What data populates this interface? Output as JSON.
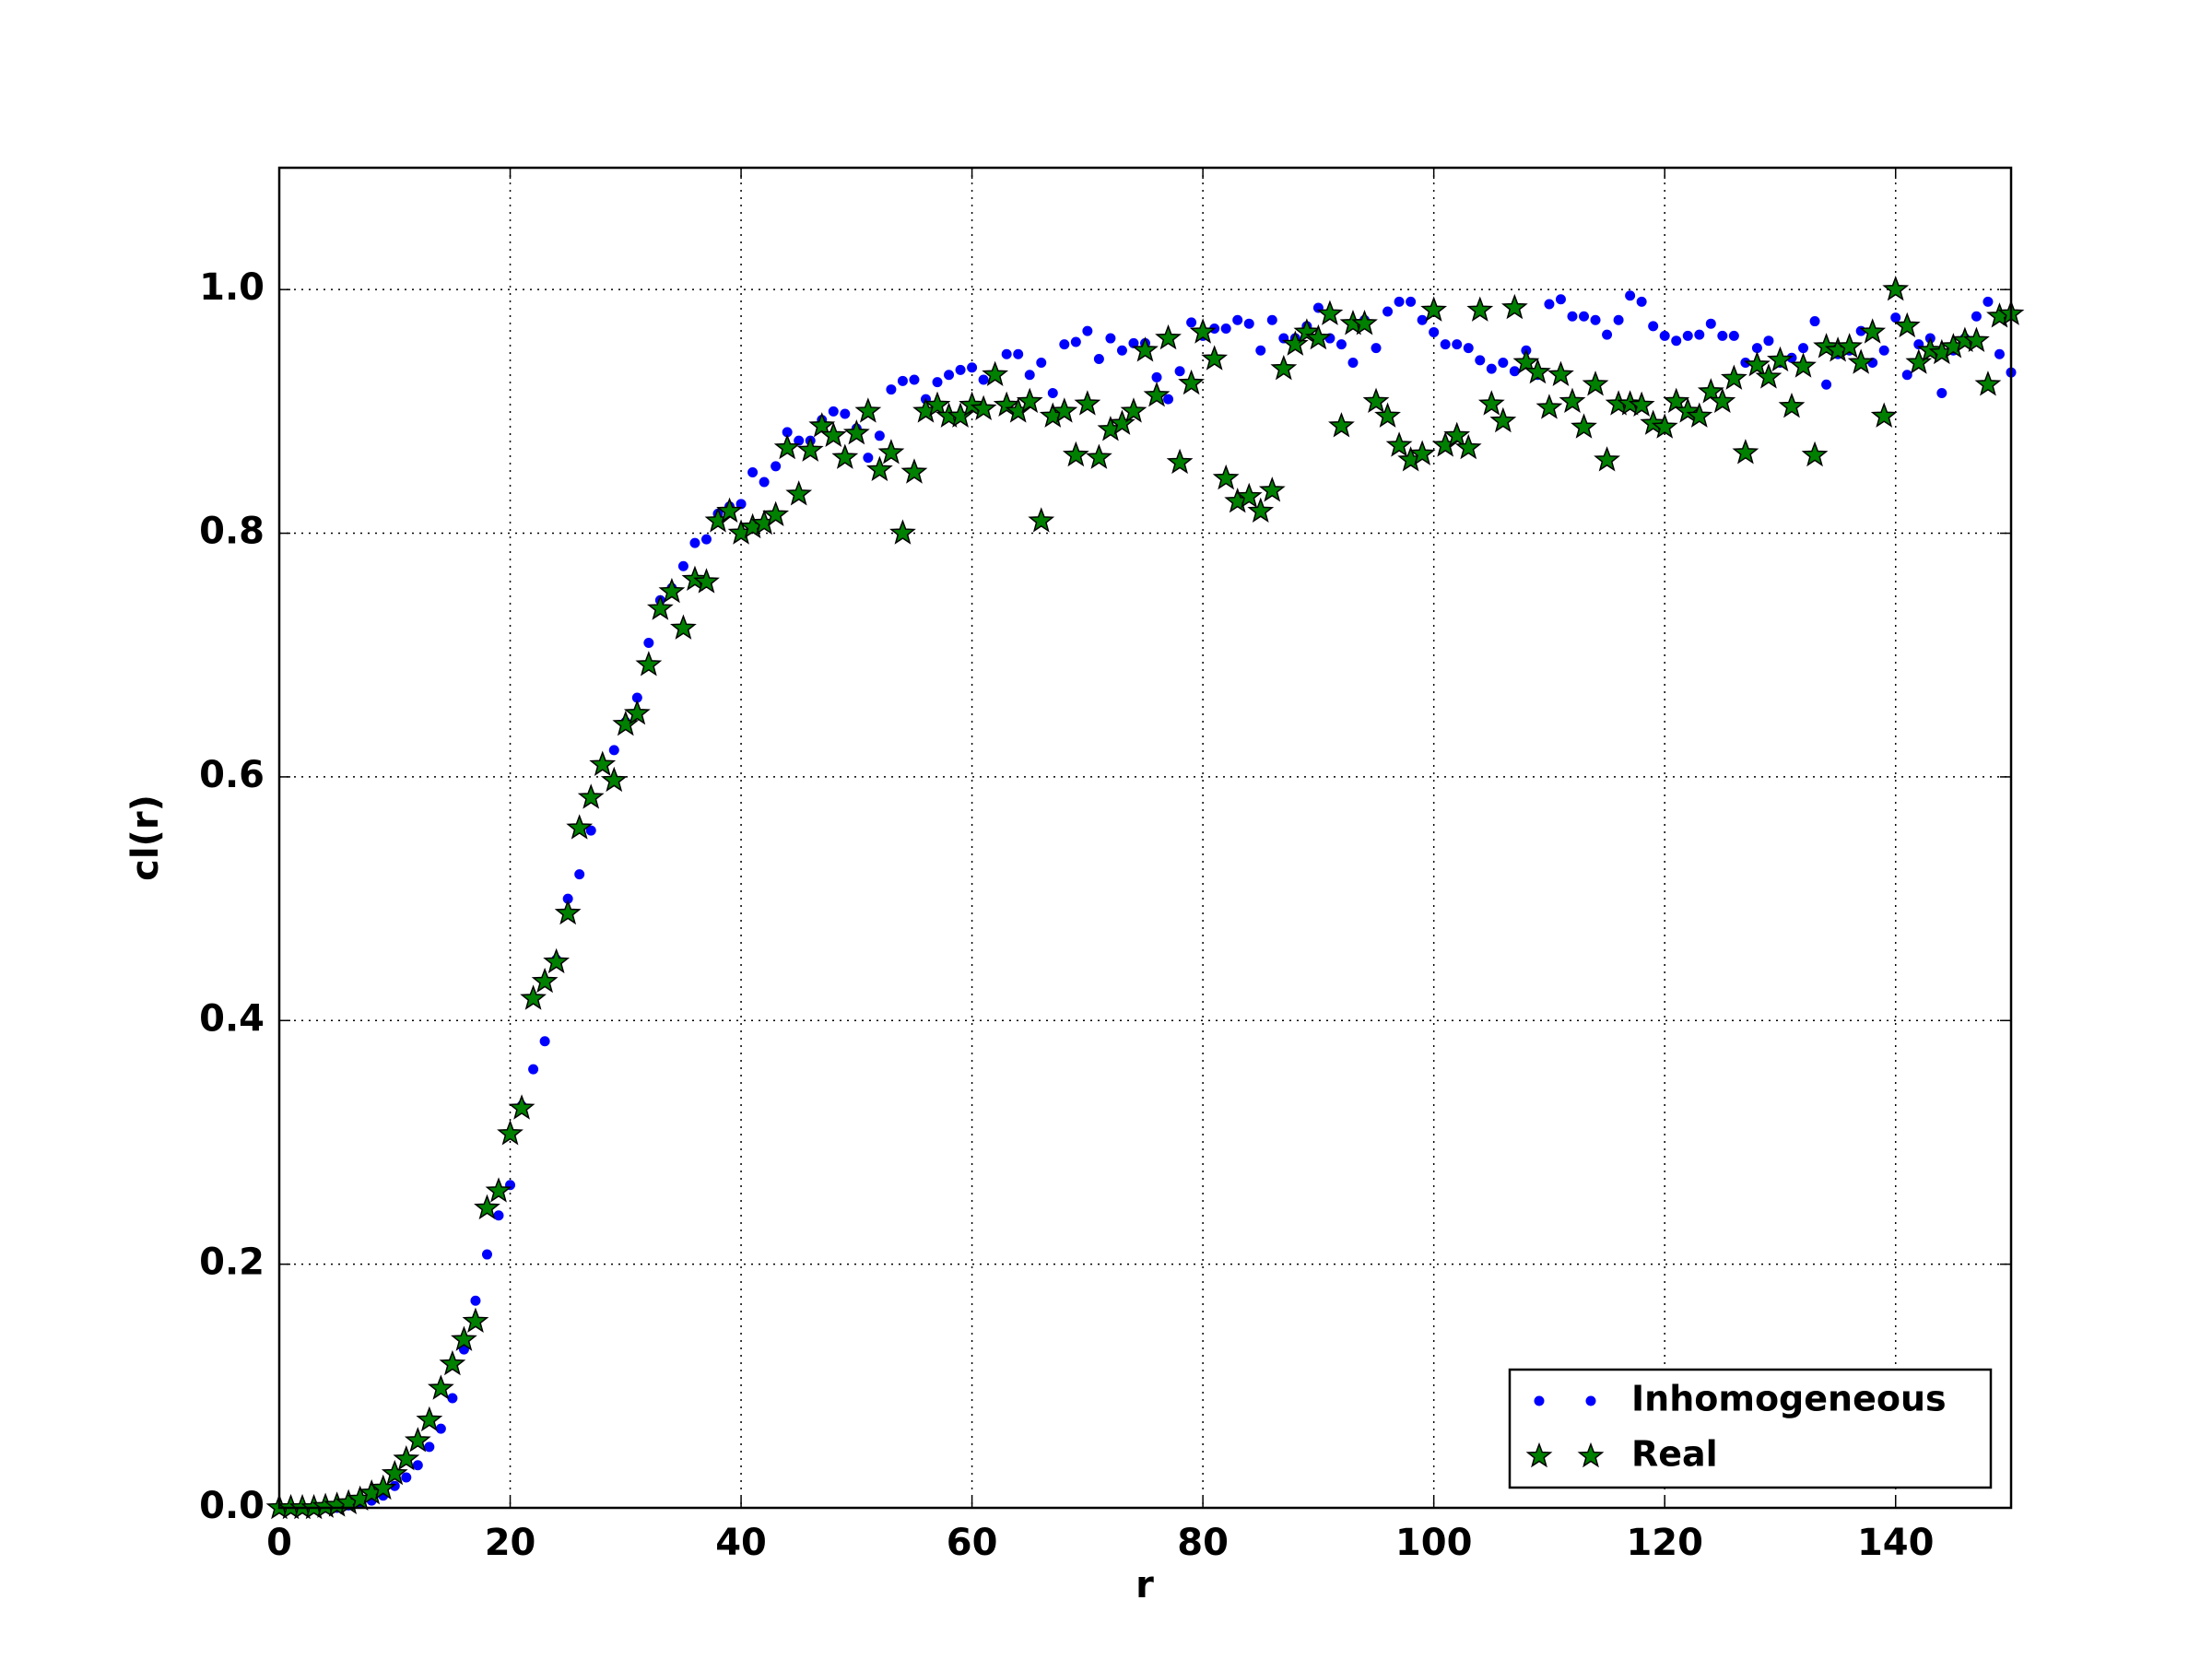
{
  "chart_data": {
    "type": "scatter",
    "x_label": "r",
    "y_label": "cl(r)",
    "xlim": [
      0,
      150
    ],
    "ylim": [
      0,
      1.1
    ],
    "xticks": [
      0,
      20,
      40,
      60,
      80,
      100,
      120,
      140
    ],
    "yticks": [
      {
        "value": 0,
        "label": "0.0"
      },
      0.2,
      0.4,
      0.6,
      0.8,
      {
        "value": 1,
        "label": "1.0"
      }
    ],
    "grid": true,
    "legend": "lower right",
    "x": [
      0,
      1,
      2,
      3,
      4,
      5,
      6,
      7,
      8,
      9,
      10,
      11,
      12,
      13,
      14,
      15,
      16,
      17,
      18,
      19,
      20,
      21,
      22,
      23,
      24,
      25,
      26,
      27,
      28,
      29,
      30,
      31,
      32,
      33,
      34,
      35,
      36,
      37,
      38,
      39,
      40,
      41,
      42,
      43,
      44,
      45,
      46,
      47,
      48,
      49,
      50,
      51,
      52,
      53,
      54,
      55,
      56,
      57,
      58,
      59,
      60,
      61,
      62,
      63,
      64,
      65,
      66,
      67,
      68,
      69,
      70,
      71,
      72,
      73,
      74,
      75,
      76,
      77,
      78,
      79,
      80,
      81,
      82,
      83,
      84,
      85,
      86,
      87,
      88,
      89,
      90,
      91,
      92,
      93,
      94,
      95,
      96,
      97,
      98,
      99,
      100,
      101,
      102,
      103,
      104,
      105,
      106,
      107,
      108,
      109,
      110,
      111,
      112,
      113,
      114,
      115,
      116,
      117,
      118,
      119,
      120,
      121,
      122,
      123,
      124,
      125,
      126,
      127,
      128,
      129,
      130,
      131,
      132,
      133,
      134,
      135,
      136,
      137,
      138,
      139,
      140,
      141,
      142,
      143,
      144,
      145,
      146,
      147,
      148,
      149,
      150
    ],
    "series": [
      {
        "name": "Inhomogeneous",
        "color": "#0000ff",
        "marker": "dot",
        "values": [
          0,
          0,
          0,
          0,
          0,
          0,
          0.002,
          0.004,
          0.006,
          0.01,
          0.018,
          0.025,
          0.035,
          0.05,
          0.065,
          0.09,
          0.13,
          0.17,
          0.208,
          0.24,
          0.265,
          0.33,
          0.36,
          0.383,
          0.45,
          0.5,
          0.52,
          0.556,
          0.61,
          0.622,
          0.645,
          0.665,
          0.71,
          0.745,
          0.755,
          0.773,
          0.792,
          0.795,
          0.816,
          0.822,
          0.824,
          0.85,
          0.842,
          0.855,
          0.883,
          0.876,
          0.876,
          0.893,
          0.9,
          0.898,
          0.886,
          0.862,
          0.88,
          0.918,
          0.925,
          0.926,
          0.91,
          0.924,
          0.93,
          0.934,
          0.936,
          0.926,
          0.93,
          0.947,
          0.947,
          0.93,
          0.94,
          0.915,
          0.955,
          0.957,
          0.966,
          0.943,
          0.96,
          0.95,
          0.956,
          0.956,
          0.928,
          0.91,
          0.933,
          0.973,
          0.962,
          0.968,
          0.968,
          0.975,
          0.972,
          0.95,
          0.975,
          0.96,
          0.96,
          0.97,
          0.985,
          0.96,
          0.955,
          0.94,
          0.975,
          0.952,
          0.982,
          0.99,
          0.99,
          0.975,
          0.965,
          0.955,
          0.955,
          0.952,
          0.942,
          0.935,
          0.94,
          0.933,
          0.95,
          0.93,
          0.988,
          0.992,
          0.978,
          0.978,
          0.975,
          0.963,
          0.975,
          0.995,
          0.99,
          0.97,
          0.962,
          0.958,
          0.962,
          0.963,
          0.972,
          0.962,
          0.962,
          0.94,
          0.952,
          0.958,
          0.94,
          0.944,
          0.952,
          0.974,
          0.922,
          0.947,
          0.95,
          0.966,
          0.94,
          0.95,
          0.977,
          0.93,
          0.955,
          0.96,
          0.915,
          0.95,
          0.96,
          0.978,
          0.99,
          0.947,
          0.932
        ]
      },
      {
        "name": "Real",
        "color": "#008000",
        "marker": "star",
        "values": [
          0,
          0,
          0,
          0,
          0.001,
          0.002,
          0.004,
          0.007,
          0.012,
          0.016,
          0.028,
          0.04,
          0.055,
          0.072,
          0.098,
          0.118,
          0.138,
          0.153,
          0.246,
          0.26,
          0.307,
          0.328,
          0.418,
          0.432,
          0.448,
          0.488,
          0.558,
          0.583,
          0.61,
          0.597,
          0.643,
          0.652,
          0.692,
          0.738,
          0.752,
          0.722,
          0.762,
          0.76,
          0.81,
          0.818,
          0.8,
          0.805,
          0.808,
          0.815,
          0.87,
          0.832,
          0.868,
          0.888,
          0.88,
          0.862,
          0.882,
          0.9,
          0.852,
          0.866,
          0.8,
          0.85,
          0.9,
          0.905,
          0.896,
          0.896,
          0.905,
          0.902,
          0.93,
          0.905,
          0.9,
          0.908,
          0.81,
          0.896,
          0.9,
          0.864,
          0.906,
          0.862,
          0.885,
          0.89,
          0.9,
          0.95,
          0.913,
          0.96,
          0.858,
          0.923,
          0.965,
          0.943,
          0.845,
          0.826,
          0.83,
          0.818,
          0.835,
          0.935,
          0.955,
          0.965,
          0.96,
          0.98,
          0.888,
          0.972,
          0.972,
          0.908,
          0.896,
          0.872,
          0.86,
          0.865,
          0.983,
          0.872,
          0.88,
          0.87,
          0.983,
          0.906,
          0.892,
          0.985,
          0.94,
          0.932,
          0.903,
          0.93,
          0.908,
          0.887,
          0.922,
          0.86,
          0.906,
          0.906,
          0.905,
          0.89,
          0.887,
          0.908,
          0.9,
          0.896,
          0.916,
          0.908,
          0.927,
          0.866,
          0.938,
          0.928,
          0.942,
          0.904,
          0.937,
          0.864,
          0.953,
          0.95,
          0.953,
          0.94,
          0.965,
          0.896,
          1.0,
          0.97,
          0.94,
          0.95,
          0.948,
          0.953,
          0.958,
          0.958,
          0.922,
          0.978,
          0.98
        ]
      }
    ]
  }
}
